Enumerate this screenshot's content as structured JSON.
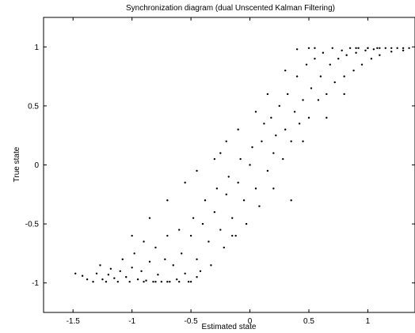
{
  "chart_data": {
    "type": "scatter",
    "title": "Synchronization diagram (dual Unscented Kalman Filtering)",
    "xlabel": "Estimated state",
    "ylabel": "True state",
    "xlim": [
      -1.75,
      1.4
    ],
    "ylim": [
      -1.25,
      1.25
    ],
    "xticks": [
      -1.5,
      -1,
      -0.5,
      0,
      0.5,
      1
    ],
    "xtick_labels": [
      "-1.5",
      "-1",
      "-0.5",
      "0",
      "0.5",
      "1"
    ],
    "yticks": [
      -1,
      -0.5,
      0,
      0.5,
      1
    ],
    "ytick_labels": [
      "-1",
      "-0.5",
      "0",
      "0.5",
      "1"
    ],
    "grid": false,
    "legend": "none",
    "marker_color": "#000000",
    "series": [
      {
        "points": [
          [
            -1.48,
            -0.92
          ],
          [
            -1.42,
            -0.94
          ],
          [
            -1.38,
            -0.97
          ],
          [
            -1.33,
            -0.99
          ],
          [
            -1.3,
            -0.92
          ],
          [
            -1.27,
            -0.85
          ],
          [
            -1.25,
            -0.97
          ],
          [
            -1.22,
            -0.99
          ],
          [
            -1.2,
            -0.93
          ],
          [
            -1.18,
            -0.88
          ],
          [
            -1.15,
            -0.96
          ],
          [
            -1.12,
            -0.99
          ],
          [
            -1.1,
            -0.9
          ],
          [
            -1.08,
            -0.8
          ],
          [
            -1.05,
            -0.95
          ],
          [
            -1.02,
            -0.99
          ],
          [
            -1.0,
            -0.87
          ],
          [
            -0.98,
            -0.75
          ],
          [
            -0.95,
            -0.97
          ],
          [
            -0.92,
            -0.9
          ],
          [
            -0.9,
            -0.65
          ],
          [
            -0.88,
            -0.98
          ],
          [
            -0.85,
            -0.82
          ],
          [
            -0.82,
            -0.99
          ],
          [
            -0.8,
            -0.7
          ],
          [
            -0.78,
            -0.93
          ],
          [
            -0.75,
            -0.99
          ],
          [
            -0.72,
            -0.8
          ],
          [
            -0.7,
            -0.6
          ],
          [
            -0.68,
            -0.99
          ],
          [
            -0.65,
            -0.85
          ],
          [
            -0.62,
            -0.97
          ],
          [
            -0.6,
            -0.55
          ],
          [
            -0.58,
            -0.75
          ],
          [
            -0.55,
            -0.92
          ],
          [
            -0.52,
            -0.99
          ],
          [
            -0.5,
            -0.6
          ],
          [
            -0.48,
            -0.45
          ],
          [
            -0.45,
            -0.8
          ],
          [
            -0.42,
            -0.9
          ],
          [
            -0.4,
            -0.5
          ],
          [
            -0.38,
            -0.3
          ],
          [
            -0.35,
            -0.65
          ],
          [
            -0.33,
            -0.85
          ],
          [
            -0.3,
            -0.4
          ],
          [
            -0.28,
            -0.2
          ],
          [
            -0.25,
            -0.55
          ],
          [
            -0.22,
            -0.7
          ],
          [
            -0.2,
            -0.25
          ],
          [
            -0.18,
            -0.1
          ],
          [
            -0.15,
            -0.45
          ],
          [
            -0.12,
            -0.6
          ],
          [
            -0.1,
            -0.15
          ],
          [
            -0.08,
            0.05
          ],
          [
            -0.05,
            -0.3
          ],
          [
            -0.03,
            -0.5
          ],
          [
            0.0,
            0.0
          ],
          [
            0.02,
            0.15
          ],
          [
            0.05,
            -0.2
          ],
          [
            0.08,
            -0.35
          ],
          [
            0.1,
            0.2
          ],
          [
            0.12,
            0.35
          ],
          [
            0.15,
            -0.05
          ],
          [
            0.18,
            0.4
          ],
          [
            0.2,
            0.1
          ],
          [
            0.22,
            0.25
          ],
          [
            0.25,
            0.5
          ],
          [
            0.28,
            0.05
          ],
          [
            0.3,
            0.3
          ],
          [
            0.32,
            0.6
          ],
          [
            0.35,
            0.2
          ],
          [
            0.38,
            0.45
          ],
          [
            0.4,
            0.75
          ],
          [
            0.42,
            0.35
          ],
          [
            0.45,
            0.55
          ],
          [
            0.48,
            0.85
          ],
          [
            0.5,
            0.4
          ],
          [
            0.52,
            0.65
          ],
          [
            0.55,
            0.9
          ],
          [
            0.58,
            0.55
          ],
          [
            0.6,
            0.75
          ],
          [
            0.62,
            0.95
          ],
          [
            0.65,
            0.6
          ],
          [
            0.68,
            0.85
          ],
          [
            0.7,
            0.99
          ],
          [
            0.72,
            0.7
          ],
          [
            0.75,
            0.9
          ],
          [
            0.78,
            0.97
          ],
          [
            0.8,
            0.75
          ],
          [
            0.82,
            0.93
          ],
          [
            0.85,
            0.99
          ],
          [
            0.88,
            0.8
          ],
          [
            0.9,
            0.95
          ],
          [
            0.92,
            0.99
          ],
          [
            0.95,
            0.85
          ],
          [
            0.98,
            0.97
          ],
          [
            1.0,
            0.99
          ],
          [
            1.03,
            0.9
          ],
          [
            1.05,
            0.98
          ],
          [
            1.08,
            0.99
          ],
          [
            1.1,
            0.93
          ],
          [
            1.15,
            0.99
          ],
          [
            1.2,
            0.96
          ],
          [
            1.25,
            0.99
          ],
          [
            1.3,
            0.97
          ],
          [
            1.35,
            0.99
          ],
          [
            -1.0,
            -0.6
          ],
          [
            -0.85,
            -0.45
          ],
          [
            -0.7,
            -0.3
          ],
          [
            -0.55,
            -0.15
          ],
          [
            -0.45,
            -0.05
          ],
          [
            -0.3,
            0.05
          ],
          [
            -0.2,
            0.2
          ],
          [
            -0.1,
            0.3
          ],
          [
            0.05,
            0.45
          ],
          [
            0.15,
            0.6
          ],
          [
            0.3,
            0.8
          ],
          [
            0.4,
            0.98
          ],
          [
            0.5,
            0.99
          ],
          [
            0.55,
            0.99
          ],
          [
            -0.9,
            -0.99
          ],
          [
            -0.8,
            -0.99
          ],
          [
            -0.7,
            -0.99
          ],
          [
            -0.6,
            -0.99
          ],
          [
            -0.5,
            -0.99
          ],
          [
            0.9,
            0.99
          ],
          [
            1.0,
            0.99
          ],
          [
            1.1,
            0.99
          ],
          [
            1.2,
            0.99
          ],
          [
            1.3,
            0.99
          ],
          [
            0.35,
            -0.3
          ],
          [
            0.2,
            -0.2
          ],
          [
            -0.25,
            0.1
          ],
          [
            -0.45,
            -0.95
          ],
          [
            0.45,
            0.2
          ],
          [
            -0.15,
            -0.6
          ],
          [
            0.65,
            0.4
          ],
          [
            0.8,
            0.6
          ]
        ]
      }
    ]
  }
}
